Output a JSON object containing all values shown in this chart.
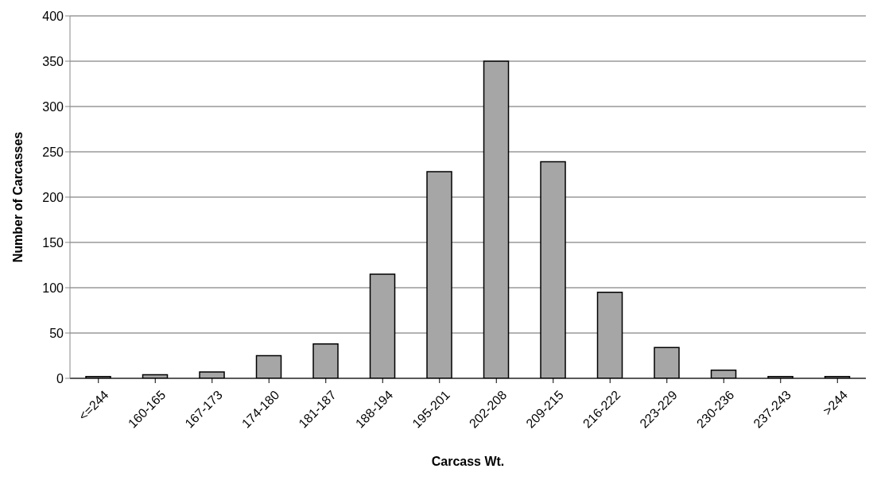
{
  "chart_data": {
    "type": "bar",
    "xlabel": "Carcass Wt.",
    "ylabel": "Number of Carcasses",
    "categories": [
      "<=244",
      "160-165",
      "167-173",
      "174-180",
      "181-187",
      "188-194",
      "195-201",
      "202-208",
      "209-215",
      "216-222",
      "223-229",
      "230-236",
      "237-243",
      ">244"
    ],
    "values": [
      2,
      4,
      7,
      25,
      38,
      115,
      228,
      350,
      239,
      95,
      34,
      9,
      2,
      2
    ],
    "color": "#a6a6a6",
    "ylim": [
      0,
      400
    ],
    "yticks": [
      0,
      50,
      100,
      150,
      200,
      250,
      300,
      350,
      400
    ],
    "grid": "y"
  }
}
